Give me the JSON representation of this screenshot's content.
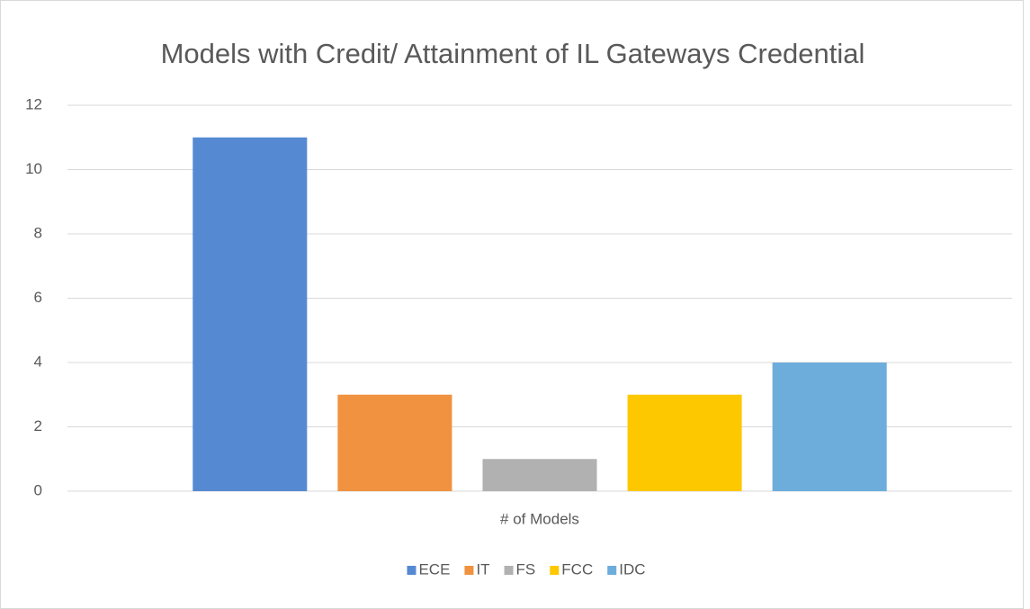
{
  "chart_data": {
    "type": "bar",
    "title": "Models with Credit/ Attainment of IL Gateways Credential",
    "categories": [
      "# of Models"
    ],
    "series": [
      {
        "name": "ECE",
        "color": "#558ad3",
        "values": [
          11
        ]
      },
      {
        "name": "IT",
        "color": "#f0923f",
        "values": [
          3
        ]
      },
      {
        "name": "FS",
        "color": "#b1b1b1",
        "values": [
          1
        ]
      },
      {
        "name": "FCC",
        "color": "#fdc800",
        "values": [
          3
        ]
      },
      {
        "name": "IDC",
        "color": "#6daddc",
        "values": [
          4
        ]
      }
    ],
    "ylim": [
      0,
      12
    ],
    "yticks": [
      0,
      2,
      4,
      6,
      8,
      10,
      12
    ],
    "grid": true,
    "legend": "bottom"
  }
}
